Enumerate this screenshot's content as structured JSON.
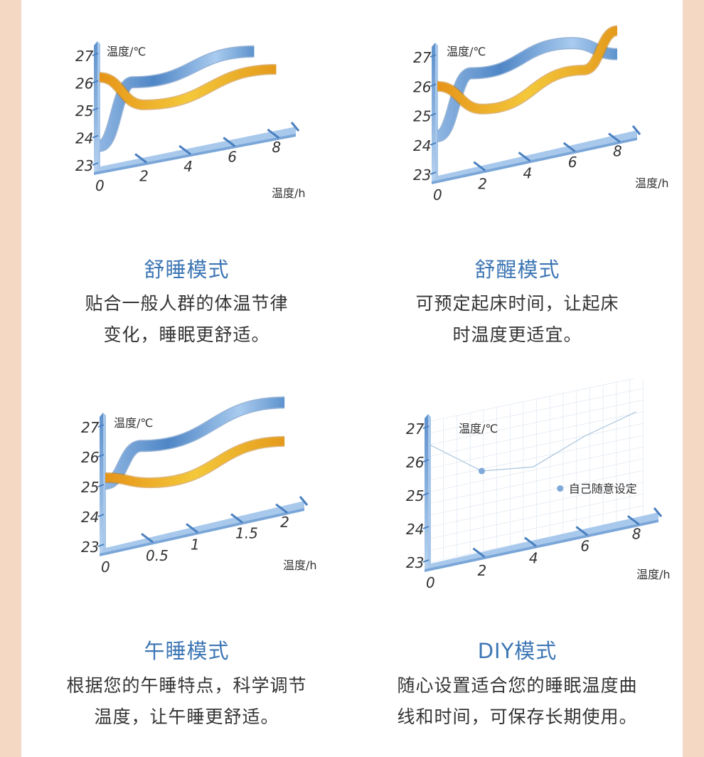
{
  "colors": {
    "accent": "#3d76b4",
    "blue_band": "#6f9fd4",
    "gold_band": "#e8a21c",
    "axis": "#9cc0e8"
  },
  "panels": [
    {
      "title": "舒睡模式",
      "desc_lines": [
        "贴合一般人群的体温节律",
        "变化，睡眠更舒适。"
      ],
      "chart": {
        "type": "line",
        "ylabel": "温度/℃",
        "xlabel": "温度/h",
        "y_ticks": [
          "27",
          "26",
          "25",
          "24",
          "23"
        ],
        "x_ticks": [
          "0",
          "2",
          "4",
          "6",
          "8"
        ],
        "ylim": [
          23,
          27
        ],
        "xlim": [
          0,
          8
        ],
        "series": [
          {
            "color": "blue",
            "x": [
              0,
              1.5,
              7
            ],
            "y": [
              23.7,
              25.8,
              26.1
            ]
          },
          {
            "color": "gold",
            "x": [
              0,
              2,
              8
            ],
            "y": [
              26.2,
              24.9,
              25.3
            ]
          }
        ]
      }
    },
    {
      "title": "舒醒模式",
      "desc_lines": [
        "可预定起床时间，让起床",
        "时温度更适宜。"
      ],
      "chart": {
        "type": "line",
        "ylabel": "温度/℃",
        "xlabel": "温度/h",
        "y_ticks": [
          "27",
          "26",
          "25",
          "24",
          "23"
        ],
        "x_ticks": [
          "0",
          "2",
          "4",
          "6",
          "8"
        ],
        "ylim": [
          23,
          27
        ],
        "xlim": [
          0,
          8
        ],
        "series": [
          {
            "color": "blue",
            "x": [
              0,
              1.5,
              6,
              8
            ],
            "y": [
              24.3,
              26.2,
              26.5,
              25.8
            ]
          },
          {
            "color": "gold",
            "x": [
              0,
              2,
              6.5,
              8
            ],
            "y": [
              26.0,
              24.9,
              25.5,
              26.6
            ]
          }
        ]
      }
    },
    {
      "title": "午睡模式",
      "desc_lines": [
        "根据您的午睡特点，科学调节",
        "温度，让午睡更舒适。"
      ],
      "chart": {
        "type": "line",
        "ylabel": "温度/℃",
        "xlabel": "温度/h",
        "y_ticks": [
          "27",
          "26",
          "25",
          "24",
          "23"
        ],
        "x_ticks": [
          "0",
          "0.5",
          "1",
          "1.5",
          "2"
        ],
        "ylim": [
          23,
          27
        ],
        "xlim": [
          0,
          2
        ],
        "series": [
          {
            "color": "blue",
            "x": [
              0,
              0.4,
              2
            ],
            "y": [
              25.1,
              26.1,
              26.5
            ]
          },
          {
            "color": "gold",
            "x": [
              0,
              0.5,
              2
            ],
            "y": [
              25.3,
              24.8,
              25.2
            ]
          }
        ]
      }
    },
    {
      "title": "DIY模式",
      "desc_lines": [
        "随心设置适合您的睡眠温度曲",
        "线和时间，可保存长期使用。"
      ],
      "chart": {
        "type": "line",
        "ylabel": "温度/℃",
        "xlabel": "温度/h",
        "y_ticks": [
          "27",
          "26",
          "25",
          "24",
          "23"
        ],
        "x_ticks": [
          "0",
          "2",
          "4",
          "6",
          "8"
        ],
        "ylim": [
          23,
          27
        ],
        "xlim": [
          0,
          8
        ],
        "grid": true,
        "annotation": "自己随意设定",
        "series": [
          {
            "color": "thin",
            "x": [
              0,
              2,
              4,
              6,
              8
            ],
            "y": [
              26.5,
              25.4,
              25.2,
              25.8,
              26.2
            ]
          }
        ]
      }
    }
  ]
}
